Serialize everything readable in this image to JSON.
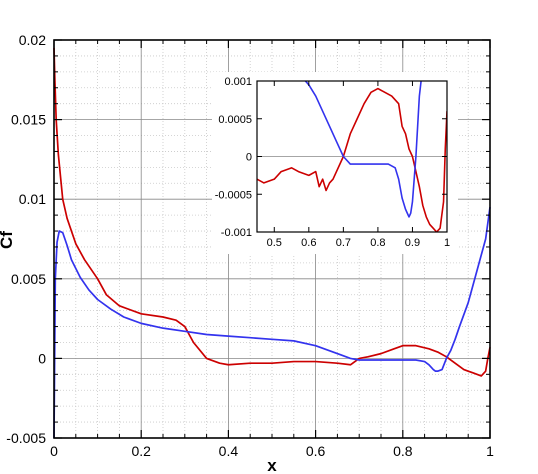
{
  "chart_data": [
    {
      "type": "line",
      "title": "",
      "xlabel": "x",
      "ylabel": "Cf",
      "xlim": [
        0,
        1
      ],
      "ylim": [
        -0.005,
        0.02
      ],
      "x_ticks": [
        0,
        0.2,
        0.4,
        0.6,
        0.8,
        1
      ],
      "x_tick_labels": [
        "0",
        "0.2",
        "0.4",
        "0.6",
        "0.8",
        "1"
      ],
      "y_ticks": [
        -0.005,
        0,
        0.005,
        0.01,
        0.015,
        0.02
      ],
      "y_tick_labels": [
        "-0.005",
        "0",
        "0.005",
        "0.01",
        "0.015",
        "0.02"
      ],
      "grid": true,
      "legend": "none",
      "series": [
        {
          "color": "#cc0000",
          "x": [
            0.0,
            0.002,
            0.005,
            0.01,
            0.02,
            0.03,
            0.05,
            0.07,
            0.1,
            0.12,
            0.15,
            0.2,
            0.25,
            0.28,
            0.3,
            0.32,
            0.35,
            0.38,
            0.4,
            0.45,
            0.5,
            0.55,
            0.6,
            0.65,
            0.68,
            0.7,
            0.72,
            0.75,
            0.78,
            0.8,
            0.83,
            0.86,
            0.88,
            0.9,
            0.92,
            0.94,
            0.95,
            0.96,
            0.97,
            0.98,
            0.99,
            0.995,
            1.0
          ],
          "y": [
            0.0195,
            0.0175,
            0.015,
            0.0128,
            0.01,
            0.0088,
            0.0072,
            0.0062,
            0.005,
            0.004,
            0.0033,
            0.0028,
            0.0026,
            0.0024,
            0.002,
            0.001,
            0.0,
            -0.0003,
            -0.0004,
            -0.0003,
            -0.0003,
            -0.0002,
            -0.0002,
            -0.0003,
            -0.0004,
            0.0,
            0.0001,
            0.0003,
            0.0006,
            0.0008,
            0.0008,
            0.0006,
            0.0004,
            0.0001,
            -0.0003,
            -0.0007,
            -0.0008,
            -0.0009,
            -0.001,
            -0.0011,
            -0.0008,
            0.0,
            0.0007
          ]
        },
        {
          "color": "#3333ee",
          "x": [
            0.0,
            0.003,
            0.007,
            0.012,
            0.02,
            0.03,
            0.04,
            0.06,
            0.08,
            0.1,
            0.13,
            0.16,
            0.2,
            0.25,
            0.3,
            0.35,
            0.4,
            0.45,
            0.5,
            0.55,
            0.6,
            0.63,
            0.66,
            0.68,
            0.7,
            0.72,
            0.75,
            0.8,
            0.83,
            0.85,
            0.86,
            0.87,
            0.875,
            0.88,
            0.89,
            0.9,
            0.91,
            0.92,
            0.93,
            0.95,
            0.97,
            0.98,
            0.99,
            1.0
          ],
          "y": [
            -0.005,
            0.005,
            0.0073,
            0.008,
            0.0079,
            0.0071,
            0.0062,
            0.0051,
            0.0043,
            0.0037,
            0.0031,
            0.0026,
            0.0022,
            0.0019,
            0.0017,
            0.0015,
            0.0014,
            0.0013,
            0.0012,
            0.0011,
            0.0008,
            0.0005,
            0.0002,
            0.0,
            -0.0001,
            -0.0001,
            -0.0001,
            -0.0001,
            -0.0001,
            -0.0002,
            -0.0004,
            -0.0007,
            -0.0008,
            -0.0008,
            -0.0007,
            0.0,
            0.0005,
            0.0012,
            0.002,
            0.0035,
            0.0055,
            0.0065,
            0.0075,
            0.0095
          ]
        }
      ]
    },
    {
      "type": "line",
      "title": "",
      "xlabel": "",
      "ylabel": "",
      "xlim": [
        0.45,
        1
      ],
      "ylim": [
        -0.001,
        0.001
      ],
      "x_ticks": [
        0.5,
        0.6,
        0.7,
        0.8,
        0.9,
        1
      ],
      "x_tick_labels": [
        "0.5",
        "0.6",
        "0.7",
        "0.8",
        "0.9",
        "1"
      ],
      "y_ticks": [
        -0.001,
        -0.0005,
        0,
        0.0005,
        0.001
      ],
      "y_tick_labels": [
        "-0.001",
        "-0.0005",
        "0",
        "0.0005",
        "0.001"
      ],
      "grid": false,
      "legend": "none",
      "series": [
        {
          "color": "#cc0000",
          "x": [
            0.45,
            0.47,
            0.5,
            0.52,
            0.55,
            0.57,
            0.6,
            0.62,
            0.63,
            0.64,
            0.65,
            0.66,
            0.67,
            0.7,
            0.72,
            0.74,
            0.76,
            0.78,
            0.8,
            0.82,
            0.84,
            0.86,
            0.87,
            0.88,
            0.89,
            0.9,
            0.91,
            0.92,
            0.93,
            0.94,
            0.95,
            0.96,
            0.97,
            0.98,
            0.99,
            0.995,
            1.0
          ],
          "y": [
            -0.0003,
            -0.00035,
            -0.0003,
            -0.0002,
            -0.00015,
            -0.0002,
            -0.00025,
            -0.0002,
            -0.0004,
            -0.0003,
            -0.00045,
            -0.00035,
            -0.0003,
            0.0,
            0.0003,
            0.0005,
            0.0007,
            0.00085,
            0.0009,
            0.00085,
            0.0008,
            0.0007,
            0.0004,
            0.0003,
            0.0001,
            0.0,
            -0.0002,
            -0.0004,
            -0.00065,
            -0.0008,
            -0.0009,
            -0.00095,
            -0.001,
            -0.00095,
            -0.0006,
            0.0001,
            0.0006
          ]
        },
        {
          "color": "#3333ee",
          "x": [
            0.59,
            0.6,
            0.62,
            0.64,
            0.66,
            0.68,
            0.7,
            0.72,
            0.75,
            0.8,
            0.83,
            0.85,
            0.86,
            0.87,
            0.88,
            0.885,
            0.89,
            0.895,
            0.9,
            0.905,
            0.91,
            0.915,
            0.92,
            0.925
          ],
          "y": [
            0.001,
            0.00095,
            0.0008,
            0.0006,
            0.0004,
            0.0002,
            0.0,
            -0.0001,
            -0.0001,
            -0.0001,
            -0.0001,
            -0.00015,
            -0.0003,
            -0.00055,
            -0.0007,
            -0.00075,
            -0.0008,
            -0.00075,
            -0.0006,
            -0.0003,
            0.0,
            0.0004,
            0.0008,
            0.001
          ]
        }
      ]
    }
  ]
}
